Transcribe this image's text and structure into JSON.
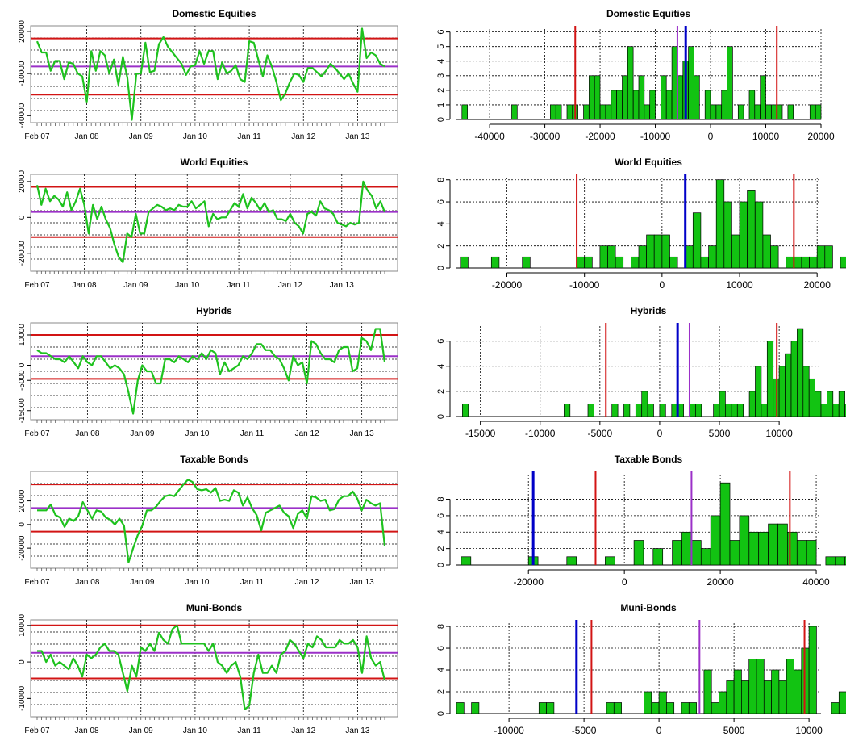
{
  "colors": {
    "line": "#1ec21e",
    "bar_fill": "#12c312",
    "mean": "#9b30c8",
    "bounds": "#d21414",
    "current": "#0000c8",
    "grid": "#000000",
    "frame": "#888888"
  },
  "chart_data": [
    {
      "id": "ts-domestic",
      "type": "line",
      "title": "Domestic Equities",
      "xlabel": "",
      "ylabel": "",
      "x_tick_labels": [
        "Feb 07",
        "Jan 08",
        "Jan 09",
        "Jan 10",
        "Jan 11",
        "Jan 12",
        "Jan 13"
      ],
      "x_tick_months": [
        0,
        11,
        23,
        35,
        47,
        59,
        71
      ],
      "y_ticks": [
        -40000,
        -10000,
        20000
      ],
      "ylim": [
        -45000,
        24000
      ],
      "mean": -5000,
      "upper": 15000,
      "lower": -25000,
      "series": [
        {
          "name": "Domestic Equities",
          "values": [
            13000,
            5000,
            5000,
            -8000,
            -1000,
            -1000,
            -14000,
            -2000,
            -3000,
            -10000,
            -12000,
            -30000,
            6000,
            -8000,
            6000,
            3000,
            -10000,
            0,
            -18000,
            2000,
            -13000,
            -43000,
            -10000,
            -10000,
            12000,
            -9000,
            -8000,
            11000,
            16000,
            9000,
            5000,
            1000,
            -3000,
            -11000,
            -5000,
            -4000,
            6000,
            -3000,
            6000,
            6000,
            -14000,
            -2000,
            -10000,
            -8000,
            -4000,
            -14000,
            -16000,
            13000,
            12000,
            0,
            -12000,
            3000,
            -5000,
            -16000,
            -29000,
            -24000,
            -16000,
            -10000,
            -11000,
            -16000,
            -6000,
            -6000,
            -9000,
            -12000,
            -8000,
            -3000,
            -6000,
            -10000,
            -14000,
            -10000,
            -17000,
            -23000,
            22000,
            1000,
            5000,
            3000,
            -3000,
            -5000
          ]
        }
      ]
    },
    {
      "id": "hist-domestic",
      "type": "bar",
      "title": "Domestic Equities",
      "x_ticks": [
        -40000,
        -30000,
        -20000,
        -10000,
        0,
        10000,
        20000
      ],
      "y_ticks": [
        0,
        1,
        2,
        3,
        4,
        5,
        6
      ],
      "xlim": [
        -46000,
        20000
      ],
      "ylim": [
        0,
        6.2
      ],
      "bin_start": -45000,
      "bin_width": 1000,
      "counts": [
        1,
        0,
        0,
        0,
        0,
        0,
        0,
        0,
        0,
        1,
        0,
        0,
        0,
        0,
        0,
        0,
        1,
        1,
        0,
        1,
        1,
        0,
        1,
        3,
        3,
        1,
        1,
        2,
        2,
        3,
        5,
        2,
        3,
        1,
        2,
        0,
        3,
        2,
        5,
        3,
        4,
        5,
        3,
        0,
        2,
        1,
        1,
        2,
        5,
        0,
        1,
        0,
        2,
        1,
        3,
        1,
        1,
        1,
        0,
        1,
        0,
        0,
        0,
        1,
        1
      ],
      "mean": -6000,
      "current": -4500,
      "lower": -24500,
      "upper": 12000
    },
    {
      "id": "ts-world",
      "type": "line",
      "title": "World Equities",
      "x_tick_labels": [
        "Feb 07",
        "Jan 08",
        "Jan 09",
        "Jan 10",
        "Jan 11",
        "Jan 12",
        "Jan 13"
      ],
      "x_tick_months": [
        0,
        11,
        23,
        35,
        47,
        59,
        71
      ],
      "y_ticks": [
        -20000,
        0,
        20000
      ],
      "ylim": [
        -30000,
        24000
      ],
      "mean": 3000,
      "upper": 17000,
      "lower": -11000,
      "series": [
        {
          "name": "World Equities",
          "values": [
            18000,
            7000,
            16000,
            9000,
            12000,
            10000,
            6000,
            14000,
            4000,
            9000,
            16000,
            7000,
            -9000,
            7000,
            -1000,
            6000,
            -1000,
            -6000,
            -15000,
            -22000,
            -25000,
            -9000,
            -11000,
            2000,
            -9000,
            -9000,
            3000,
            5000,
            7000,
            6000,
            4000,
            5000,
            4000,
            7000,
            6000,
            6000,
            9000,
            5000,
            7000,
            9000,
            -5000,
            2000,
            -1000,
            0,
            0,
            4000,
            8000,
            6000,
            13000,
            5000,
            11000,
            8000,
            4000,
            8000,
            3000,
            4000,
            -1000,
            -1000,
            -2000,
            2000,
            -3000,
            -5000,
            -9000,
            2000,
            3000,
            1000,
            9000,
            5000,
            4000,
            2000,
            -3000,
            -4000,
            -5000,
            -3000,
            -4000,
            -3000,
            20000,
            15000,
            12000,
            5000,
            9000,
            3000
          ]
        }
      ]
    },
    {
      "id": "hist-world",
      "type": "bar",
      "title": "World Equities",
      "x_ticks": [
        -20000,
        -10000,
        0,
        10000,
        20000
      ],
      "y_ticks": [
        0,
        2,
        4,
        6,
        8
      ],
      "xlim": [
        -26500,
        20500
      ],
      "ylim": [
        0,
        8.2
      ],
      "bin_start": -26000,
      "bin_width": 1000,
      "counts": [
        1,
        0,
        0,
        0,
        1,
        0,
        0,
        0,
        1,
        0,
        0,
        0,
        0,
        0,
        0,
        1,
        1,
        0,
        2,
        2,
        1,
        0,
        1,
        2,
        3,
        3,
        3,
        1,
        0,
        2,
        5,
        1,
        2,
        8,
        6,
        3,
        6,
        7,
        6,
        3,
        2,
        0,
        1,
        1,
        1,
        1,
        2,
        2,
        0,
        1
      ],
      "mean": 3000,
      "current": 3000,
      "lower": -11000,
      "upper": 17000
    },
    {
      "id": "ts-hybrids",
      "type": "line",
      "title": "Hybrids",
      "x_tick_labels": [
        "Feb 07",
        "Jan 08",
        "Jan 09",
        "Jan 10",
        "Jan 11",
        "Jan 12",
        "Jan 13"
      ],
      "x_tick_months": [
        0,
        11,
        23,
        35,
        47,
        59,
        71
      ],
      "y_ticks": [
        -15000,
        -5000,
        0,
        10000
      ],
      "ylim": [
        -18000,
        14000
      ],
      "mean": 3000,
      "upper": 10000,
      "lower": -4500,
      "series": [
        {
          "name": "Hybrids",
          "values": [
            5000,
            4000,
            4000,
            3000,
            2000,
            2000,
            1000,
            3000,
            1000,
            -1000,
            3000,
            1000,
            0,
            3000,
            3000,
            1000,
            -1000,
            0,
            -1000,
            -3000,
            -9000,
            -16000,
            -5000,
            0,
            -2000,
            -2000,
            -6000,
            -6000,
            2000,
            2000,
            1000,
            3000,
            2000,
            1000,
            3000,
            2000,
            4000,
            2000,
            5000,
            4000,
            -3000,
            1000,
            -2000,
            -1000,
            0,
            3000,
            2000,
            4000,
            7000,
            7000,
            5000,
            5000,
            3000,
            2000,
            -1000,
            -5000,
            3000,
            0,
            1000,
            -6000,
            8000,
            7000,
            4000,
            2000,
            2000,
            1000,
            5000,
            6000,
            6000,
            -2000,
            -1000,
            9000,
            8000,
            5000,
            12000,
            12000,
            1000
          ]
        }
      ]
    },
    {
      "id": "hist-hybrids",
      "type": "bar",
      "title": "Hybrids",
      "x_ticks": [
        -15000,
        -10000,
        -5000,
        0,
        5000,
        10000
      ],
      "y_ticks": [
        0,
        2,
        4,
        6
      ],
      "xlim": [
        -17000,
        13500
      ],
      "ylim": [
        0,
        7.2
      ],
      "bin_start": -16500,
      "bin_width": 500,
      "counts": [
        1,
        0,
        0,
        0,
        0,
        0,
        0,
        0,
        0,
        0,
        0,
        0,
        0,
        0,
        0,
        0,
        0,
        1,
        0,
        0,
        0,
        1,
        0,
        0,
        0,
        1,
        0,
        1,
        0,
        1,
        2,
        1,
        0,
        1,
        0,
        1,
        1,
        0,
        1,
        1,
        0,
        0,
        1,
        2,
        1,
        1,
        1,
        0,
        2,
        4,
        1,
        6,
        3,
        4,
        5,
        6,
        7,
        4,
        3,
        2,
        1,
        2,
        1,
        2,
        1,
        1,
        1,
        2,
        1,
        0,
        1,
        0,
        1,
        0,
        0,
        0,
        1,
        1
      ],
      "mean": 2500,
      "current": 1500,
      "lower": -4500,
      "upper": 9800
    },
    {
      "id": "ts-taxable",
      "type": "line",
      "title": "Taxable Bonds",
      "x_tick_labels": [
        "Feb 07",
        "Jan 08",
        "Jan 09",
        "Jan 10",
        "Jan 11",
        "Jan 12",
        "Jan 13"
      ],
      "x_tick_months": [
        0,
        11,
        23,
        35,
        47,
        59,
        71
      ],
      "y_ticks": [
        -20000,
        0,
        20000
      ],
      "ylim": [
        -37000,
        45000
      ],
      "mean": 14000,
      "upper": 34000,
      "lower": -6000,
      "series": [
        {
          "name": "Taxable Bonds",
          "values": [
            12000,
            12000,
            12000,
            17000,
            8000,
            6000,
            -2000,
            5000,
            3000,
            7000,
            19000,
            12000,
            5000,
            12000,
            11000,
            6000,
            4000,
            0,
            5000,
            -1000,
            -32000,
            -20000,
            -9000,
            -1000,
            12000,
            12000,
            15000,
            20000,
            24000,
            25000,
            24000,
            29000,
            34000,
            38000,
            36000,
            30000,
            29000,
            30000,
            27000,
            31000,
            20000,
            21000,
            20000,
            29000,
            27000,
            16000,
            23000,
            14000,
            8000,
            -5000,
            10000,
            12000,
            14000,
            16000,
            10000,
            7000,
            -3000,
            9000,
            12000,
            5000,
            24000,
            23000,
            20000,
            21000,
            12000,
            13000,
            21000,
            24000,
            24000,
            28000,
            22000,
            12000,
            21000,
            18000,
            16000,
            18000,
            -18000
          ]
        }
      ]
    },
    {
      "id": "hist-taxable",
      "type": "bar",
      "title": "Taxable Bonds",
      "x_ticks": [
        -20000,
        0,
        20000,
        40000
      ],
      "y_ticks": [
        0,
        2,
        4,
        6,
        8
      ],
      "xlim": [
        -35000,
        41000
      ],
      "ylim": [
        0,
        11
      ],
      "bin_start": -34000,
      "bin_width": 2000,
      "counts": [
        1,
        0,
        0,
        0,
        0,
        0,
        0,
        1,
        0,
        0,
        0,
        1,
        0,
        0,
        0,
        1,
        0,
        0,
        3,
        0,
        2,
        0,
        3,
        4,
        3,
        2,
        6,
        10,
        3,
        6,
        4,
        4,
        5,
        5,
        4,
        3,
        3,
        0,
        1,
        1,
        1,
        1
      ],
      "mean": 14000,
      "current": -19000,
      "lower": -6000,
      "upper": 34500
    },
    {
      "id": "ts-muni",
      "type": "line",
      "title": "Muni-Bonds",
      "x_tick_labels": [
        "Feb 07",
        "Jan 08",
        "Jan 09",
        "Jan 10",
        "Jan 11",
        "Jan 12",
        "Jan 13"
      ],
      "x_tick_months": [
        0,
        11,
        23,
        35,
        47,
        59,
        71
      ],
      "y_ticks": [
        -10000,
        0,
        10000
      ],
      "ylim": [
        -15000,
        11500
      ],
      "mean": 2500,
      "upper": 10000,
      "lower": -4500,
      "series": [
        {
          "name": "Muni-Bonds",
          "values": [
            3000,
            3000,
            0,
            2000,
            -1000,
            0,
            -1000,
            -2000,
            1000,
            -1000,
            -4000,
            2000,
            1000,
            2000,
            4000,
            5000,
            3000,
            3000,
            2000,
            -3000,
            -8000,
            -1000,
            -4000,
            4000,
            3000,
            5000,
            3000,
            8000,
            6000,
            5000,
            9000,
            10000,
            5000,
            5000,
            5000,
            5000,
            5000,
            5000,
            3000,
            5000,
            0,
            -1000,
            -3000,
            -1000,
            0,
            -4000,
            -13000,
            -12000,
            -3000,
            2000,
            -3000,
            -3000,
            -1000,
            -3000,
            2000,
            3000,
            6000,
            5000,
            3000,
            1000,
            5000,
            4000,
            7000,
            6000,
            4000,
            4000,
            4000,
            6000,
            5000,
            5000,
            6000,
            4000,
            -3000,
            7000,
            1000,
            -1000,
            0,
            -5000
          ]
        }
      ]
    },
    {
      "id": "hist-muni",
      "type": "bar",
      "title": "Muni-Bonds",
      "x_ticks": [
        -10000,
        -5000,
        0,
        5000,
        10000
      ],
      "y_ticks": [
        0,
        2,
        4,
        6,
        8
      ],
      "xlim": [
        -13500,
        10800
      ],
      "ylim": [
        0,
        8.3
      ],
      "bin_start": -13500,
      "bin_width": 500,
      "counts": [
        1,
        0,
        1,
        0,
        0,
        0,
        0,
        0,
        0,
        0,
        0,
        1,
        1,
        0,
        0,
        0,
        0,
        0,
        0,
        0,
        1,
        1,
        0,
        0,
        0,
        2,
        1,
        2,
        1,
        0,
        1,
        1,
        0,
        4,
        1,
        2,
        3,
        4,
        3,
        5,
        5,
        3,
        4,
        3,
        5,
        4,
        6,
        8,
        0,
        0,
        1,
        2,
        1,
        0,
        0,
        0,
        0,
        1,
        0,
        1
      ],
      "mean": 2700,
      "current": -5500,
      "lower": -4500,
      "upper": 9700
    }
  ]
}
